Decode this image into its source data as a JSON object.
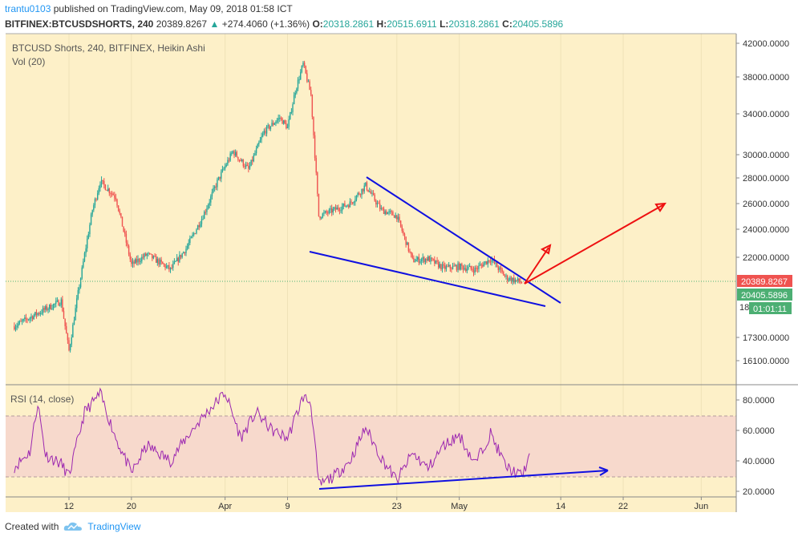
{
  "header": {
    "author": "trantu0103",
    "published": "published on TradingView.com, May 09, 2018 01:58 ICT",
    "symbol": "BITFINEX:BTCUSDSHORTS, 240",
    "last": "20389.8267",
    "change": "+274.4060 (+1.36%)",
    "o_label": "O:",
    "o": "20318.2861",
    "h_label": "H:",
    "h": "20515.6911",
    "l_label": "L:",
    "l": "20318.2861",
    "c_label": "C:",
    "c": "20405.5896"
  },
  "pane_labels": {
    "main_title": "BTCUSD Shorts, 240, BITFINEX, Heikin Ashi",
    "vol": "Vol (20)",
    "rsi": "RSI (14, close)"
  },
  "price_tags": {
    "last": "20389.8267",
    "close": "20405.5896",
    "timer": "01:01:11",
    "partial": "18"
  },
  "footer": {
    "created_with": "Created with",
    "brand": "TradingView"
  },
  "colors": {
    "bg": "#fdf0c8",
    "up": "#26a69a",
    "down": "#ef5350",
    "trend_blue": "#1010e0",
    "arrow_red": "#ee1111",
    "rsi_line": "#9c27b0",
    "rsi_band": "#f7d9cc",
    "last_tag": "#ef5350",
    "close_tag": "#4caf73"
  },
  "chart_data": [
    {
      "type": "candlestick",
      "title": "BTCUSD Shorts, 240, BITFINEX, Heikin Ashi",
      "y_scale": "log",
      "y_ticks": [
        "42000.0000",
        "38000.0000",
        "34000.0000",
        "30000.0000",
        "28000.0000",
        "26000.0000",
        "24000.0000",
        "22000.0000",
        "17300.0000",
        "16100.0000"
      ],
      "x_ticks": [
        "12",
        "20",
        "Apr",
        "9",
        "23",
        "May",
        "14",
        "22",
        "Jun"
      ],
      "approx_close_path": [
        [
          "Mar 5",
          17900
        ],
        [
          "Mar 8",
          18600
        ],
        [
          "Mar 11",
          19300
        ],
        [
          "Mar 12",
          16600
        ],
        [
          "Mar 13",
          19300
        ],
        [
          "Mar 15",
          25500
        ],
        [
          "Mar 16",
          27700
        ],
        [
          "Mar 18",
          26500
        ],
        [
          "Mar 20",
          21500
        ],
        [
          "Mar 22",
          22200
        ],
        [
          "Mar 25",
          21200
        ],
        [
          "Mar 27",
          22600
        ],
        [
          "Mar 29",
          24800
        ],
        [
          "Mar 31",
          27700
        ],
        [
          "Apr 2",
          30300
        ],
        [
          "Apr 4",
          28700
        ],
        [
          "Apr 6",
          32200
        ],
        [
          "Apr 8",
          33600
        ],
        [
          "Apr 9",
          32600
        ],
        [
          "Apr 10",
          36500
        ],
        [
          "Apr 11",
          39500
        ],
        [
          "Apr 12",
          36000
        ],
        [
          "Apr 13",
          25000
        ],
        [
          "Apr 15",
          25500
        ],
        [
          "Apr 17",
          26000
        ],
        [
          "Apr 19",
          27400
        ],
        [
          "Apr 21",
          25500
        ],
        [
          "Apr 23",
          25000
        ],
        [
          "Apr 25",
          21800
        ],
        [
          "Apr 27",
          21900
        ],
        [
          "Apr 29",
          21300
        ],
        [
          "May 1",
          21400
        ],
        [
          "May 3",
          21200
        ],
        [
          "May 5",
          21900
        ],
        [
          "May 7",
          20700
        ],
        [
          "May 9",
          20405.5896
        ]
      ],
      "annotations": [
        {
          "type": "trendline",
          "color": "blue",
          "from": [
            "Apr 19",
            27900
          ],
          "to": [
            "May 16",
            18600
          ]
        },
        {
          "type": "trendline",
          "color": "blue",
          "from": [
            "Apr 12",
            22400
          ],
          "to": [
            "May 14",
            19000
          ]
        },
        {
          "type": "arrow",
          "color": "red",
          "from": [
            "May 9",
            20100
          ],
          "to": [
            "May 13",
            22600
          ]
        },
        {
          "type": "arrow",
          "color": "red",
          "from": [
            "May 9",
            20100
          ],
          "to": [
            "Jun 1",
            25800
          ]
        }
      ]
    },
    {
      "type": "line",
      "title": "RSI (14, close)",
      "y_ticks": [
        "80.0000",
        "60.0000",
        "40.0000",
        "20.0000"
      ],
      "bands": [
        30,
        70
      ],
      "approx_values": [
        [
          "Mar 5",
          36
        ],
        [
          "Mar 7",
          46
        ],
        [
          "Mar 8",
          78
        ],
        [
          "Mar 9",
          44
        ],
        [
          "Mar 11",
          38
        ],
        [
          "Mar 12",
          30
        ],
        [
          "Mar 14",
          72
        ],
        [
          "Mar 16",
          84
        ],
        [
          "Mar 18",
          55
        ],
        [
          "Mar 20",
          32
        ],
        [
          "Mar 22",
          50
        ],
        [
          "Mar 25",
          40
        ],
        [
          "Mar 27",
          55
        ],
        [
          "Mar 29",
          68
        ],
        [
          "Apr 1",
          85
        ],
        [
          "Apr 3",
          55
        ],
        [
          "Apr 5",
          72
        ],
        [
          "Apr 7",
          60
        ],
        [
          "Apr 9",
          55
        ],
        [
          "Apr 11",
          82
        ],
        [
          "Apr 12",
          78
        ],
        [
          "Apr 13",
          24
        ],
        [
          "Apr 15",
          30
        ],
        [
          "Apr 17",
          40
        ],
        [
          "Apr 19",
          62
        ],
        [
          "Apr 21",
          42
        ],
        [
          "Apr 23",
          27
        ],
        [
          "Apr 25",
          45
        ],
        [
          "Apr 27",
          35
        ],
        [
          "Apr 29",
          50
        ],
        [
          "May 1",
          57
        ],
        [
          "May 3",
          38
        ],
        [
          "May 5",
          58
        ],
        [
          "May 7",
          36
        ],
        [
          "May 9",
          30
        ],
        [
          "May 10",
          43
        ]
      ],
      "annotations": [
        {
          "type": "arrow",
          "color": "blue",
          "from": [
            "Apr 13",
            21.5
          ],
          "to": [
            "May 24",
            32
          ]
        }
      ]
    }
  ]
}
